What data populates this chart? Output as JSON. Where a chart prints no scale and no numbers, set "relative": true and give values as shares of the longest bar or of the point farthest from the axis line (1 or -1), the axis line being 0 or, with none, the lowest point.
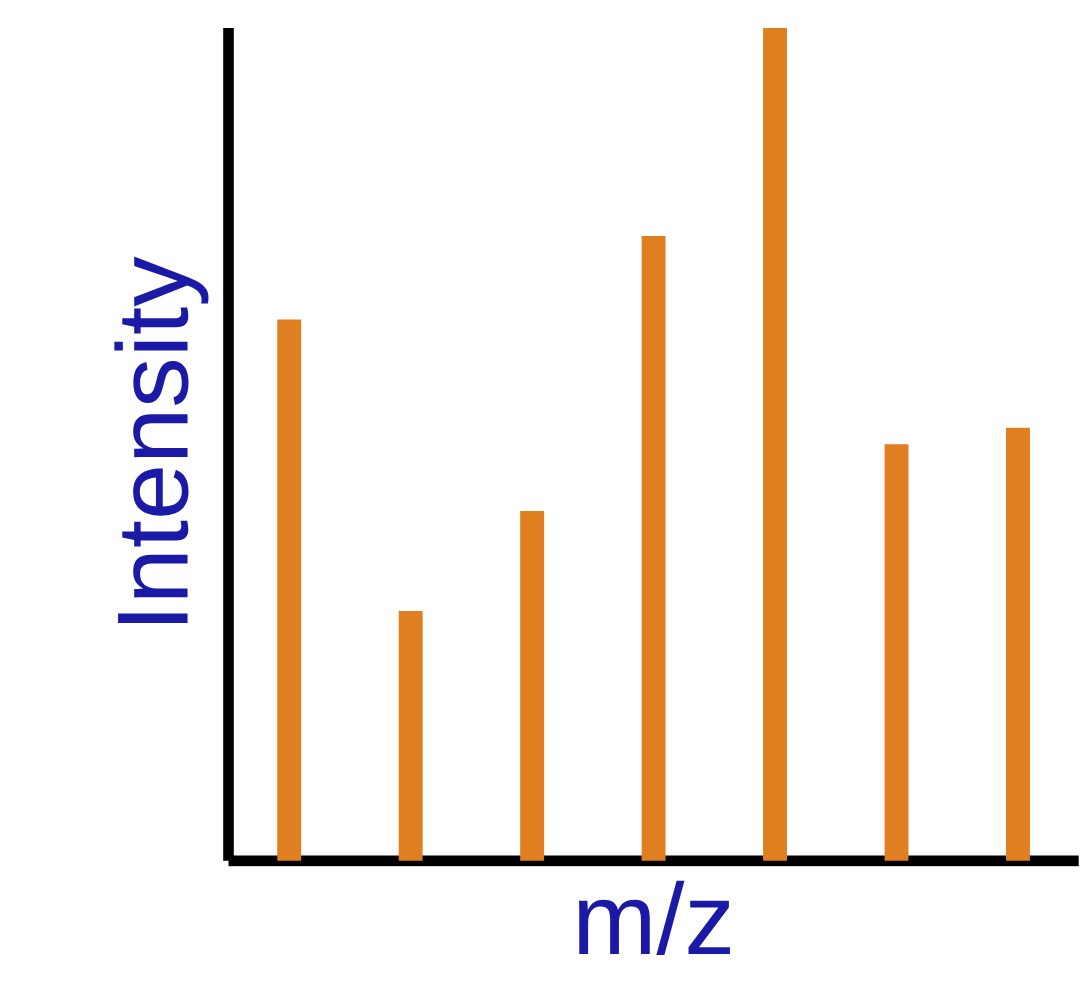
{
  "chart_data": {
    "type": "bar",
    "relative": true,
    "xlabel": "m/z",
    "ylabel": "Intensity",
    "categories": [
      null,
      null,
      null,
      null,
      null,
      null,
      null
    ],
    "values": [
      0.65,
      0.3,
      0.42,
      0.75,
      1,
      0.5,
      0.52
    ],
    "color": "#e07f1f"
  }
}
